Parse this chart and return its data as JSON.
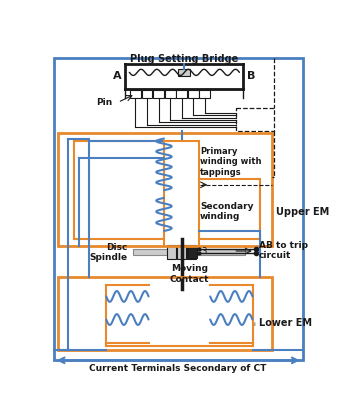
{
  "orange": "#E8892B",
  "blue": "#4A7FC0",
  "dark": "#1a1a1a",
  "gray": "#888888",
  "lgray": "#cccccc",
  "bg": "#ffffff",
  "plug_bridge_label": "Plug Setting Bridge",
  "label_A": "A",
  "label_B": "B",
  "label_Pin": "Pin",
  "label_primary": "Primary\nwinding with\ntappings",
  "label_secondary": "Secondary\nwinding",
  "label_disc": "Disc\nSpindle",
  "label_moving": "Moving\nContact",
  "label_upper": "Upper EM",
  "label_lower": "Lower EM",
  "label_AB": "AB to trip\ncircuit",
  "label_current": "Current Terminals Secondary of CT",
  "label_3": "3"
}
